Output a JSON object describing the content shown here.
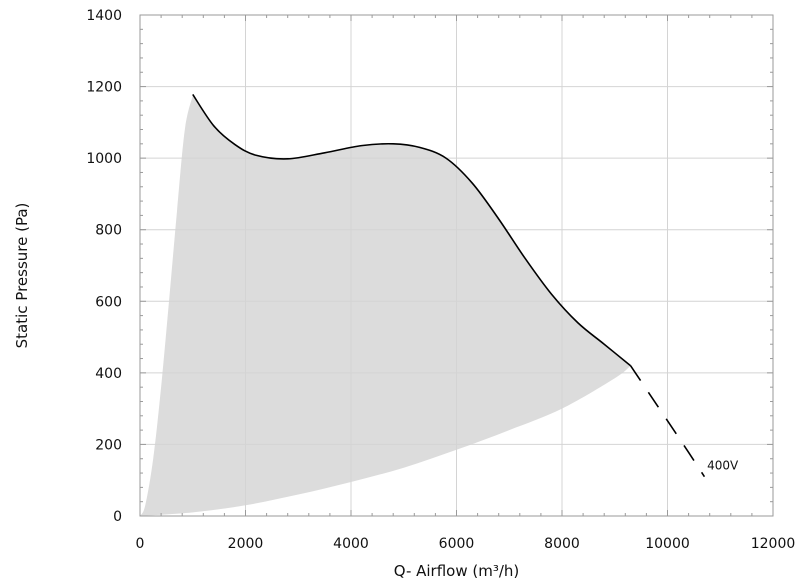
{
  "chart_data": {
    "type": "area",
    "title": "",
    "xlabel": "Q- Airflow (m³/h)",
    "ylabel": "Static Pressure (Pa)",
    "xlim": [
      0,
      12000
    ],
    "ylim": [
      0,
      1400
    ],
    "xticks": [
      "0",
      "2000",
      "4000",
      "6000",
      "8000",
      "10000",
      "12000"
    ],
    "yticks": [
      "0",
      "200",
      "400",
      "600",
      "800",
      "1000",
      "1200",
      "1400"
    ],
    "grid": true,
    "minor_ticks": true,
    "colors": {
      "region": "#dcdcdc",
      "curve": "#000000",
      "grid": "#d4d4d4",
      "axis": "#9a9a9a"
    },
    "operating_region": {
      "left_boundary": [
        [
          0,
          0
        ],
        [
          100,
          30
        ],
        [
          250,
          160
        ],
        [
          400,
          360
        ],
        [
          550,
          600
        ],
        [
          700,
          850
        ],
        [
          850,
          1080
        ],
        [
          1000,
          1175
        ]
      ],
      "bottom_boundary": [
        [
          0,
          0
        ],
        [
          1000,
          10
        ],
        [
          2000,
          30
        ],
        [
          3000,
          60
        ],
        [
          4000,
          95
        ],
        [
          5000,
          135
        ],
        [
          6000,
          185
        ],
        [
          7000,
          240
        ],
        [
          8000,
          300
        ],
        [
          9000,
          385
        ],
        [
          9300,
          420
        ]
      ]
    },
    "series": [
      {
        "name": "400V",
        "style": "solid",
        "values": [
          [
            1000,
            1178
          ],
          [
            1400,
            1090
          ],
          [
            1800,
            1038
          ],
          [
            2200,
            1008
          ],
          [
            2800,
            998
          ],
          [
            3500,
            1015
          ],
          [
            4200,
            1035
          ],
          [
            4800,
            1040
          ],
          [
            5300,
            1030
          ],
          [
            5800,
            1000
          ],
          [
            6300,
            930
          ],
          [
            6800,
            830
          ],
          [
            7300,
            720
          ],
          [
            7800,
            620
          ],
          [
            8300,
            540
          ],
          [
            8800,
            480
          ],
          [
            9300,
            420
          ]
        ]
      },
      {
        "name": "400V",
        "style": "dashed",
        "values": [
          [
            9300,
            420
          ],
          [
            9800,
            310
          ],
          [
            10300,
            200
          ],
          [
            10700,
            110
          ]
        ]
      }
    ],
    "annotations": [
      {
        "text": "400V",
        "x": 10750,
        "y": 130
      }
    ]
  }
}
